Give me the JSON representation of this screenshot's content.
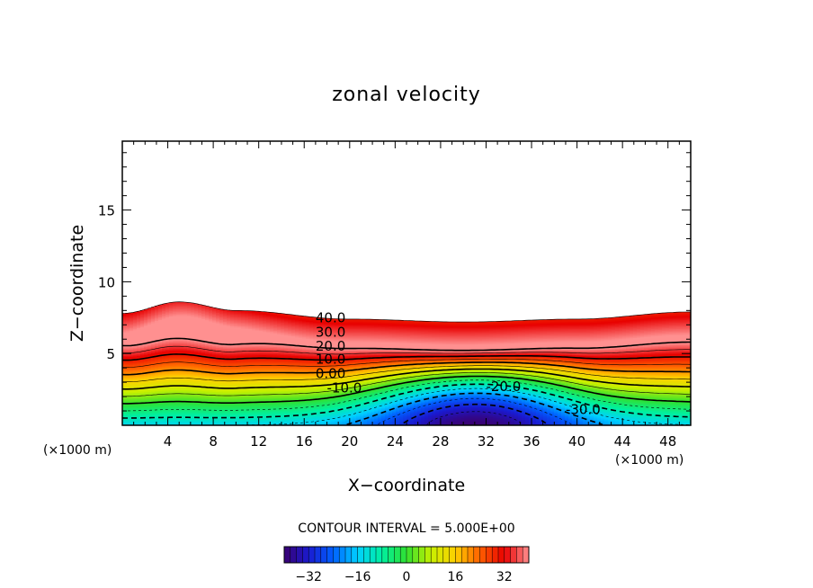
{
  "chart_data": {
    "type": "contour",
    "title": "zonal velocity",
    "xlabel": "X−coordinate",
    "ylabel": "Z−coordinate",
    "x_unit_left": "(×1000 m)",
    "x_unit_right": "(×1000 m)",
    "x_ticks": [
      "4",
      "8",
      "12",
      "16",
      "20",
      "24",
      "28",
      "32",
      "36",
      "40",
      "44",
      "48"
    ],
    "y_ticks": [
      "5",
      "10",
      "15"
    ],
    "xlim": [
      0,
      50
    ],
    "ylim": [
      0,
      19.8
    ],
    "contour_interval_text": "CONTOUR INTERVAL = 5.000E+00",
    "contour_labels": [
      "40.0",
      "30.0",
      "20.0",
      "10.0",
      "0.00",
      "-10.0",
      "-20.0",
      "-30.0"
    ],
    "contour_label_positions": [
      {
        "x": 17.0,
        "z": 7.5
      },
      {
        "x": 17.0,
        "z": 6.5
      },
      {
        "x": 17.0,
        "z": 5.5
      },
      {
        "x": 17.0,
        "z": 4.6
      },
      {
        "x": 17.0,
        "z": 3.6
      },
      {
        "x": 18.0,
        "z": 2.6
      },
      {
        "x": 32.0,
        "z": 2.7
      },
      {
        "x": 39.0,
        "z": 1.1
      }
    ],
    "colorbar": {
      "min": -40,
      "max": 40,
      "ticks": [
        "−32",
        "−16",
        "0",
        "16",
        "32"
      ],
      "tick_values": [
        -32,
        -16,
        0,
        16,
        32
      ]
    },
    "colormap": [
      "#3a0070",
      "#1a1ad0",
      "#0060ff",
      "#00d0ff",
      "#00f0a0",
      "#30e030",
      "#c8f000",
      "#ffd000",
      "#ff6000",
      "#e80000",
      "#ff9090"
    ],
    "field": {
      "top_surface_z": [
        [
          0,
          7.8
        ],
        [
          5,
          8.6
        ],
        [
          10,
          8.0
        ],
        [
          20,
          7.4
        ],
        [
          30,
          7.2
        ],
        [
          40,
          7.4
        ],
        [
          50,
          7.9
        ]
      ],
      "jet_core": {
        "value": 42,
        "x": 6,
        "z": 6.6
      },
      "negative_core": {
        "value": -40,
        "x": 31,
        "z": 0.0
      },
      "description_note": ""
    }
  }
}
